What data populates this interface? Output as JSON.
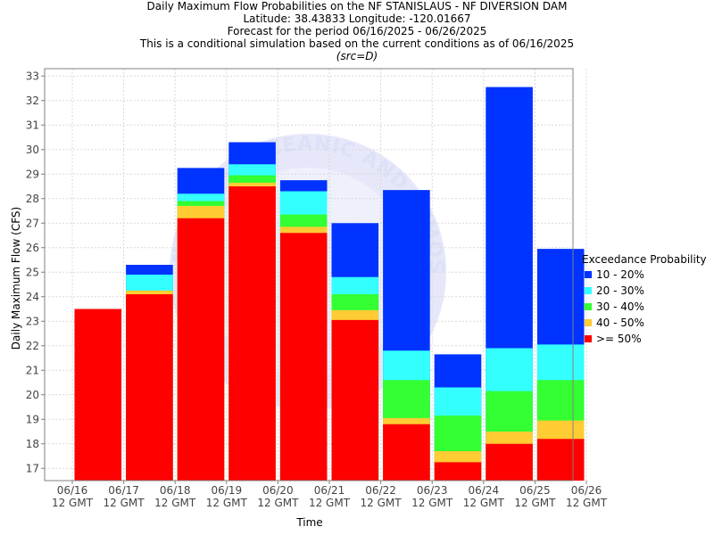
{
  "colors": {
    "p10_20": "#0033ff",
    "p20_30": "#33ffff",
    "p30_40": "#33ff33",
    "p40_50": "#ffcc33",
    "ge_50": "#ff0000",
    "grid": "#d9d9d9",
    "watermark": "#e6e8fa"
  },
  "chart_data": {
    "type": "bar",
    "stacked": true,
    "title": "Daily Maximum Flow Probabilities on the NF STANISLAUS - NF DIVERSION DAM",
    "subtitle_lines": [
      "Latitude: 38.43833 Longitude: -120.01667",
      "Forecast for the period 06/16/2025 - 06/26/2025",
      "This is a conditional simulation based on the current conditions as of 06/16/2025",
      "(src=D)"
    ],
    "xlabel": "Time",
    "ylabel": "Daily Maximum Flow (CFS)",
    "ylim": [
      16.5,
      33.3
    ],
    "yticks": [
      17,
      18,
      19,
      20,
      21,
      22,
      23,
      24,
      25,
      26,
      27,
      28,
      29,
      30,
      31,
      32,
      33
    ],
    "xtick_labels": [
      [
        "06/16",
        "12 GMT"
      ],
      [
        "06/17",
        "12 GMT"
      ],
      [
        "06/18",
        "12 GMT"
      ],
      [
        "06/19",
        "12 GMT"
      ],
      [
        "06/20",
        "12 GMT"
      ],
      [
        "06/21",
        "12 GMT"
      ],
      [
        "06/22",
        "12 GMT"
      ],
      [
        "06/23",
        "12 GMT"
      ],
      [
        "06/24",
        "12 GMT"
      ],
      [
        "06/25",
        "12 GMT"
      ],
      [
        "06/26",
        "12 GMT"
      ]
    ],
    "grid": true,
    "legend_position": "right",
    "legend_title": "Exceedance Probability",
    "legend": [
      "10 - 20%",
      "20 - 30%",
      "30 - 40%",
      "40 - 50%",
      ">= 50%"
    ],
    "bars": [
      {
        "ge_50": 23.5
      },
      {
        "ge_50": 24.1,
        "p40_50": 24.25,
        "p30_40": 24.25,
        "p20_30": 24.9,
        "p10_20": 25.3
      },
      {
        "ge_50": 27.2,
        "p40_50": 27.7,
        "p30_40": 27.9,
        "p20_30": 28.2,
        "p10_20": 29.25
      },
      {
        "ge_50": 28.5,
        "p40_50": 28.65,
        "p30_40": 28.95,
        "p20_30": 29.4,
        "p10_20": 30.3
      },
      {
        "ge_50": 26.6,
        "p40_50": 26.85,
        "p30_40": 27.35,
        "p20_30": 28.3,
        "p10_20": 28.75
      },
      {
        "ge_50": 23.05,
        "p40_50": 23.45,
        "p30_40": 24.1,
        "p20_30": 24.8,
        "p10_20": 27.0
      },
      {
        "ge_50": 18.8,
        "p40_50": 19.05,
        "p30_40": 20.6,
        "p20_30": 21.8,
        "p10_20": 28.35
      },
      {
        "ge_50": 17.25,
        "p40_50": 17.7,
        "p30_40": 19.15,
        "p20_30": 20.3,
        "p10_20": 21.65
      },
      {
        "ge_50": 18.0,
        "p40_50": 18.5,
        "p30_40": 20.15,
        "p20_30": 21.9,
        "p10_20": 32.55
      },
      {
        "ge_50": 18.2,
        "p40_50": 18.95,
        "p30_40": 20.6,
        "p20_30": 22.05,
        "p10_20": 25.95
      }
    ]
  },
  "watermark_text": "NATIONAL OCEANIC AND ATMOSPHERIC ADMINISTRATION"
}
